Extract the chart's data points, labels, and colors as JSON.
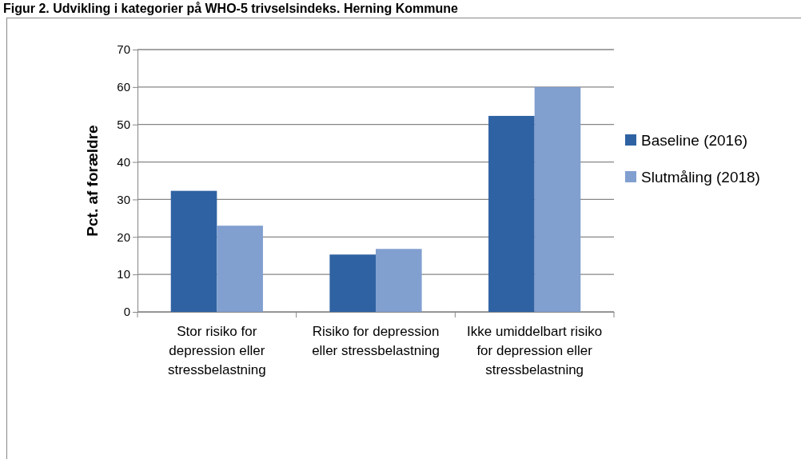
{
  "chart_data": {
    "type": "bar",
    "title": "Figur 2. Udvikling i kategorier på WHO-5 trivselsindeks. Herning Kommune",
    "ylabel": "Pct. af forældre",
    "categories": [
      "Stor risiko for depression eller stressbelastning",
      "Risiko for depression eller stressbelastning",
      "Ikke umiddelbart risiko for depression eller stressbelastning"
    ],
    "series": [
      {
        "name": "Baseline (2016)",
        "color": "#2f62a3",
        "values": [
          32.3,
          15.3,
          52.3
        ]
      },
      {
        "name": "Slutmåling (2018)",
        "color": "#819fcf",
        "values": [
          23.0,
          16.8,
          60.0
        ]
      }
    ],
    "ylim": [
      0,
      70
    ],
    "yticks": [
      0,
      10,
      20,
      30,
      40,
      50,
      60,
      70
    ],
    "grid": "y",
    "legend": "right"
  }
}
